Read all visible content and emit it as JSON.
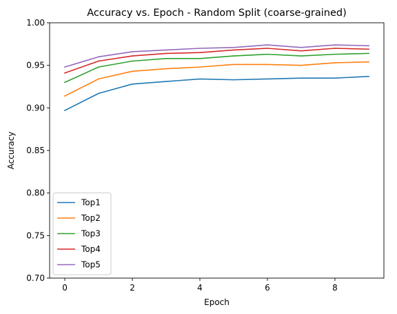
{
  "chart_data": {
    "type": "line",
    "title": "Accuracy vs. Epoch - Random Split (coarse-grained)",
    "xlabel": "Epoch",
    "ylabel": "Accuracy",
    "xlim": [
      -0.45,
      9.45
    ],
    "ylim": [
      0.7,
      1.0
    ],
    "x_ticks": [
      0,
      2,
      4,
      6,
      8
    ],
    "x_tick_labels": [
      "0",
      "2",
      "4",
      "6",
      "8"
    ],
    "y_ticks": [
      0.7,
      0.75,
      0.8,
      0.85,
      0.9,
      0.95,
      1.0
    ],
    "y_tick_labels": [
      "0.70",
      "0.75",
      "0.80",
      "0.85",
      "0.90",
      "0.95",
      "1.00"
    ],
    "grid": false,
    "legend_position": "lower-left",
    "x": [
      0,
      1,
      2,
      3,
      4,
      5,
      6,
      7,
      8,
      9
    ],
    "series": [
      {
        "name": "Top1",
        "color": "#1f77b4",
        "values": [
          0.897,
          0.917,
          0.928,
          0.931,
          0.934,
          0.933,
          0.934,
          0.935,
          0.935,
          0.937
        ]
      },
      {
        "name": "Top2",
        "color": "#ff7f0e",
        "values": [
          0.914,
          0.934,
          0.943,
          0.946,
          0.948,
          0.951,
          0.951,
          0.95,
          0.953,
          0.954
        ]
      },
      {
        "name": "Top3",
        "color": "#2ca02c",
        "values": [
          0.93,
          0.948,
          0.955,
          0.958,
          0.958,
          0.961,
          0.963,
          0.961,
          0.963,
          0.964
        ]
      },
      {
        "name": "Top4",
        "color": "#d62728",
        "values": [
          0.941,
          0.955,
          0.961,
          0.964,
          0.965,
          0.968,
          0.97,
          0.967,
          0.97,
          0.969
        ]
      },
      {
        "name": "Top5",
        "color": "#9467bd",
        "values": [
          0.948,
          0.96,
          0.966,
          0.968,
          0.97,
          0.971,
          0.974,
          0.971,
          0.974,
          0.973
        ]
      }
    ]
  }
}
